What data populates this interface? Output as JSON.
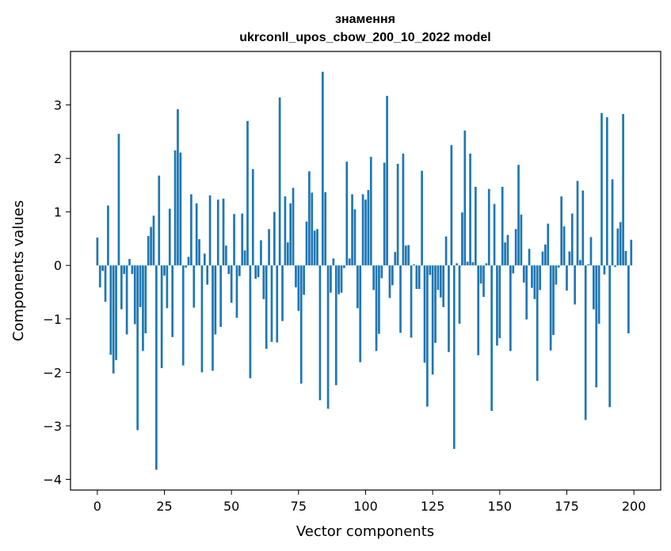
{
  "chart_data": {
    "type": "bar",
    "title": "знамення",
    "subtitle": "ukrconll_upos_cbow_200_10_2022 model",
    "xlabel": "Vector components",
    "ylabel": "Components values",
    "xlim": [
      -10,
      210
    ],
    "ylim": [
      -4.2,
      4.0
    ],
    "xticks": [
      0,
      25,
      50,
      75,
      100,
      125,
      150,
      175,
      200
    ],
    "yticks": [
      -4,
      -3,
      -2,
      -1,
      0,
      1,
      2,
      3
    ],
    "xtick_labels": [
      "0",
      "25",
      "50",
      "75",
      "100",
      "125",
      "150",
      "175",
      "200"
    ],
    "ytick_labels": [
      "−4",
      "−3",
      "−2",
      "−1",
      "0",
      "1",
      "2",
      "3"
    ],
    "bar_color": "#1f77b4",
    "grid": false,
    "x": [
      0,
      1,
      2,
      3,
      4,
      5,
      6,
      7,
      8,
      9,
      10,
      11,
      12,
      13,
      14,
      15,
      16,
      17,
      18,
      19,
      20,
      21,
      22,
      23,
      24,
      25,
      26,
      27,
      28,
      29,
      30,
      31,
      32,
      33,
      34,
      35,
      36,
      37,
      38,
      39,
      40,
      41,
      42,
      43,
      44,
      45,
      46,
      47,
      48,
      49,
      50,
      51,
      52,
      53,
      54,
      55,
      56,
      57,
      58,
      59,
      60,
      61,
      62,
      63,
      64,
      65,
      66,
      67,
      68,
      69,
      70,
      71,
      72,
      73,
      74,
      75,
      76,
      77,
      78,
      79,
      80,
      81,
      82,
      83,
      84,
      85,
      86,
      87,
      88,
      89,
      90,
      91,
      92,
      93,
      94,
      95,
      96,
      97,
      98,
      99,
      100,
      101,
      102,
      103,
      104,
      105,
      106,
      107,
      108,
      109,
      110,
      111,
      112,
      113,
      114,
      115,
      116,
      117,
      118,
      119,
      120,
      121,
      122,
      123,
      124,
      125,
      126,
      127,
      128,
      129,
      130,
      131,
      132,
      133,
      134,
      135,
      136,
      137,
      138,
      139,
      140,
      141,
      142,
      143,
      144,
      145,
      146,
      147,
      148,
      149,
      150,
      151,
      152,
      153,
      154,
      155,
      156,
      157,
      158,
      159,
      160,
      161,
      162,
      163,
      164,
      165,
      166,
      167,
      168,
      169,
      170,
      171,
      172,
      173,
      174,
      175,
      176,
      177,
      178,
      179,
      180,
      181,
      182,
      183,
      184,
      185,
      186,
      187,
      188,
      189,
      190,
      191,
      192,
      193,
      194,
      195,
      196,
      197,
      198,
      199
    ],
    "values": [
      0.52,
      -0.41,
      -0.1,
      -0.68,
      1.12,
      -1.67,
      -2.02,
      -1.77,
      2.46,
      -0.82,
      -0.16,
      -1.29,
      0.12,
      -0.16,
      -1.1,
      -3.08,
      -0.78,
      -1.6,
      -1.27,
      0.55,
      0.72,
      0.93,
      -3.82,
      1.68,
      -1.92,
      -0.19,
      -0.8,
      1.06,
      -1.34,
      2.15,
      2.92,
      2.11,
      -1.87,
      -0.04,
      0.16,
      1.33,
      -0.79,
      1.16,
      0.49,
      -2.0,
      0.22,
      -0.36,
      1.31,
      -1.97,
      -1.29,
      1.23,
      -1.15,
      1.25,
      0.37,
      -0.16,
      -0.7,
      0.96,
      -0.98,
      -0.2,
      0.97,
      0.28,
      2.7,
      -2.11,
      1.8,
      -0.25,
      -0.22,
      0.47,
      -0.63,
      -1.56,
      0.68,
      -1.43,
      1.0,
      -1.44,
      3.14,
      -1.04,
      1.29,
      0.43,
      1.16,
      1.45,
      -0.41,
      -0.85,
      -2.21,
      -0.55,
      0.82,
      1.76,
      1.36,
      0.65,
      0.68,
      -2.52,
      3.62,
      1.37,
      -2.68,
      -0.51,
      0.13,
      -2.24,
      -0.54,
      -0.51,
      -0.05,
      1.94,
      0.13,
      1.33,
      1.05,
      -0.8,
      -1.81,
      1.33,
      1.23,
      1.41,
      2.03,
      -0.46,
      -1.6,
      -1.28,
      -0.24,
      1.92,
      3.17,
      -0.61,
      -0.37,
      0.25,
      1.9,
      -1.26,
      2.09,
      0.37,
      0.38,
      -1.35,
      0.02,
      -0.44,
      -0.44,
      1.77,
      -1.82,
      -2.64,
      -0.18,
      -2.04,
      -1.45,
      -0.46,
      -0.6,
      -0.78,
      0.54,
      -1.62,
      2.25,
      -3.43,
      0.04,
      -1.09,
      0.99,
      2.52,
      0.07,
      2.09,
      0.06,
      1.47,
      -1.68,
      -0.34,
      -0.59,
      0.04,
      1.43,
      -2.72,
      1.15,
      -1.5,
      -1.36,
      1.47,
      0.43,
      0.57,
      -1.6,
      -0.15,
      0.68,
      1.88,
      0.95,
      -0.32,
      -1.01,
      0.31,
      -0.42,
      -0.63,
      -2.16,
      -0.46,
      0.26,
      0.39,
      0.78,
      -1.59,
      -1.3,
      -0.36,
      -0.04,
      1.29,
      0.73,
      -0.47,
      0.26,
      0.97,
      -0.73,
      1.58,
      0.1,
      1.4,
      -2.89,
      0.02,
      0.53,
      -0.82,
      -2.28,
      -1.09,
      2.85,
      -0.17,
      2.77,
      -2.65,
      1.61,
      -0.03,
      0.69,
      0.81,
      2.83,
      0.27,
      -1.27,
      0.48
    ]
  }
}
